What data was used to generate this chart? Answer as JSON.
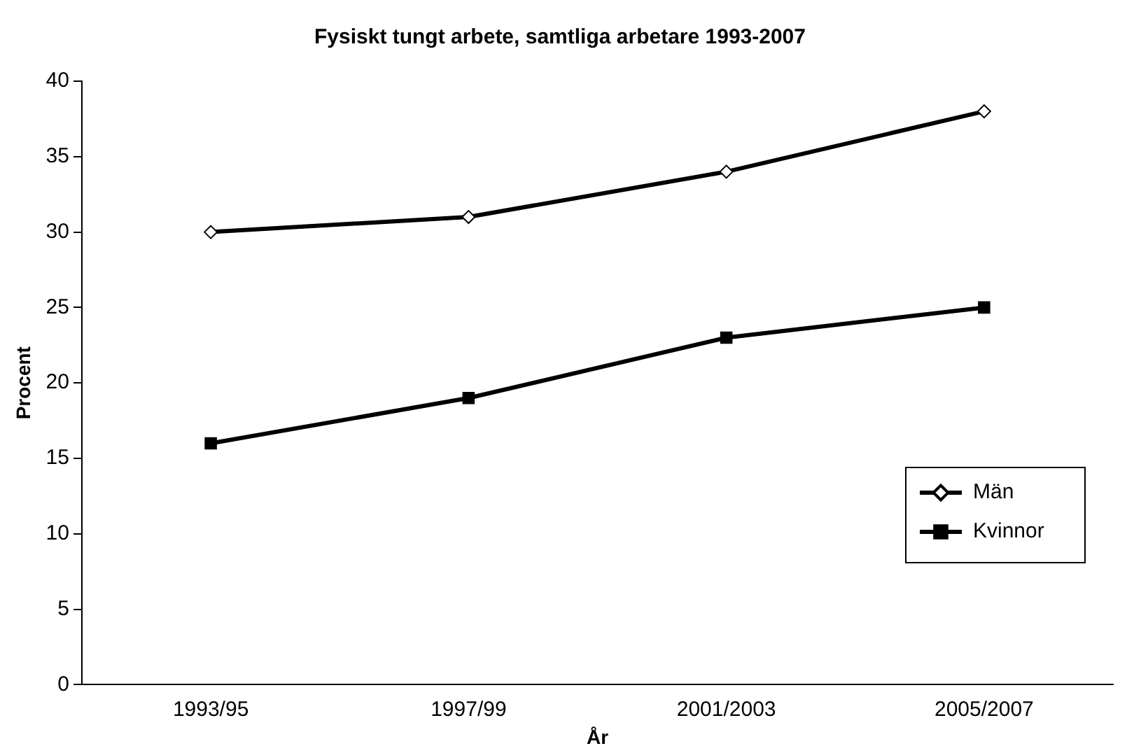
{
  "chart_data": {
    "type": "line",
    "title": "Fysiskt tungt arbete, samtliga arbetare 1993-2007",
    "xlabel": "År",
    "ylabel": "Procent",
    "categories": [
      "1993/95",
      "1997/99",
      "2001/2003",
      "2005/2007"
    ],
    "series": [
      {
        "name": "Män",
        "color": "#000000",
        "marker": "diamond",
        "values": [
          30,
          31,
          34,
          38
        ]
      },
      {
        "name": "Kvinnor",
        "color": "#000000",
        "marker": "square",
        "values": [
          16,
          19,
          23,
          25
        ]
      }
    ],
    "ylim": [
      0,
      40
    ],
    "yticks": [
      0,
      5,
      10,
      15,
      20,
      25,
      30,
      35,
      40
    ],
    "grid": false,
    "legend": "right",
    "line_style": "solid"
  }
}
